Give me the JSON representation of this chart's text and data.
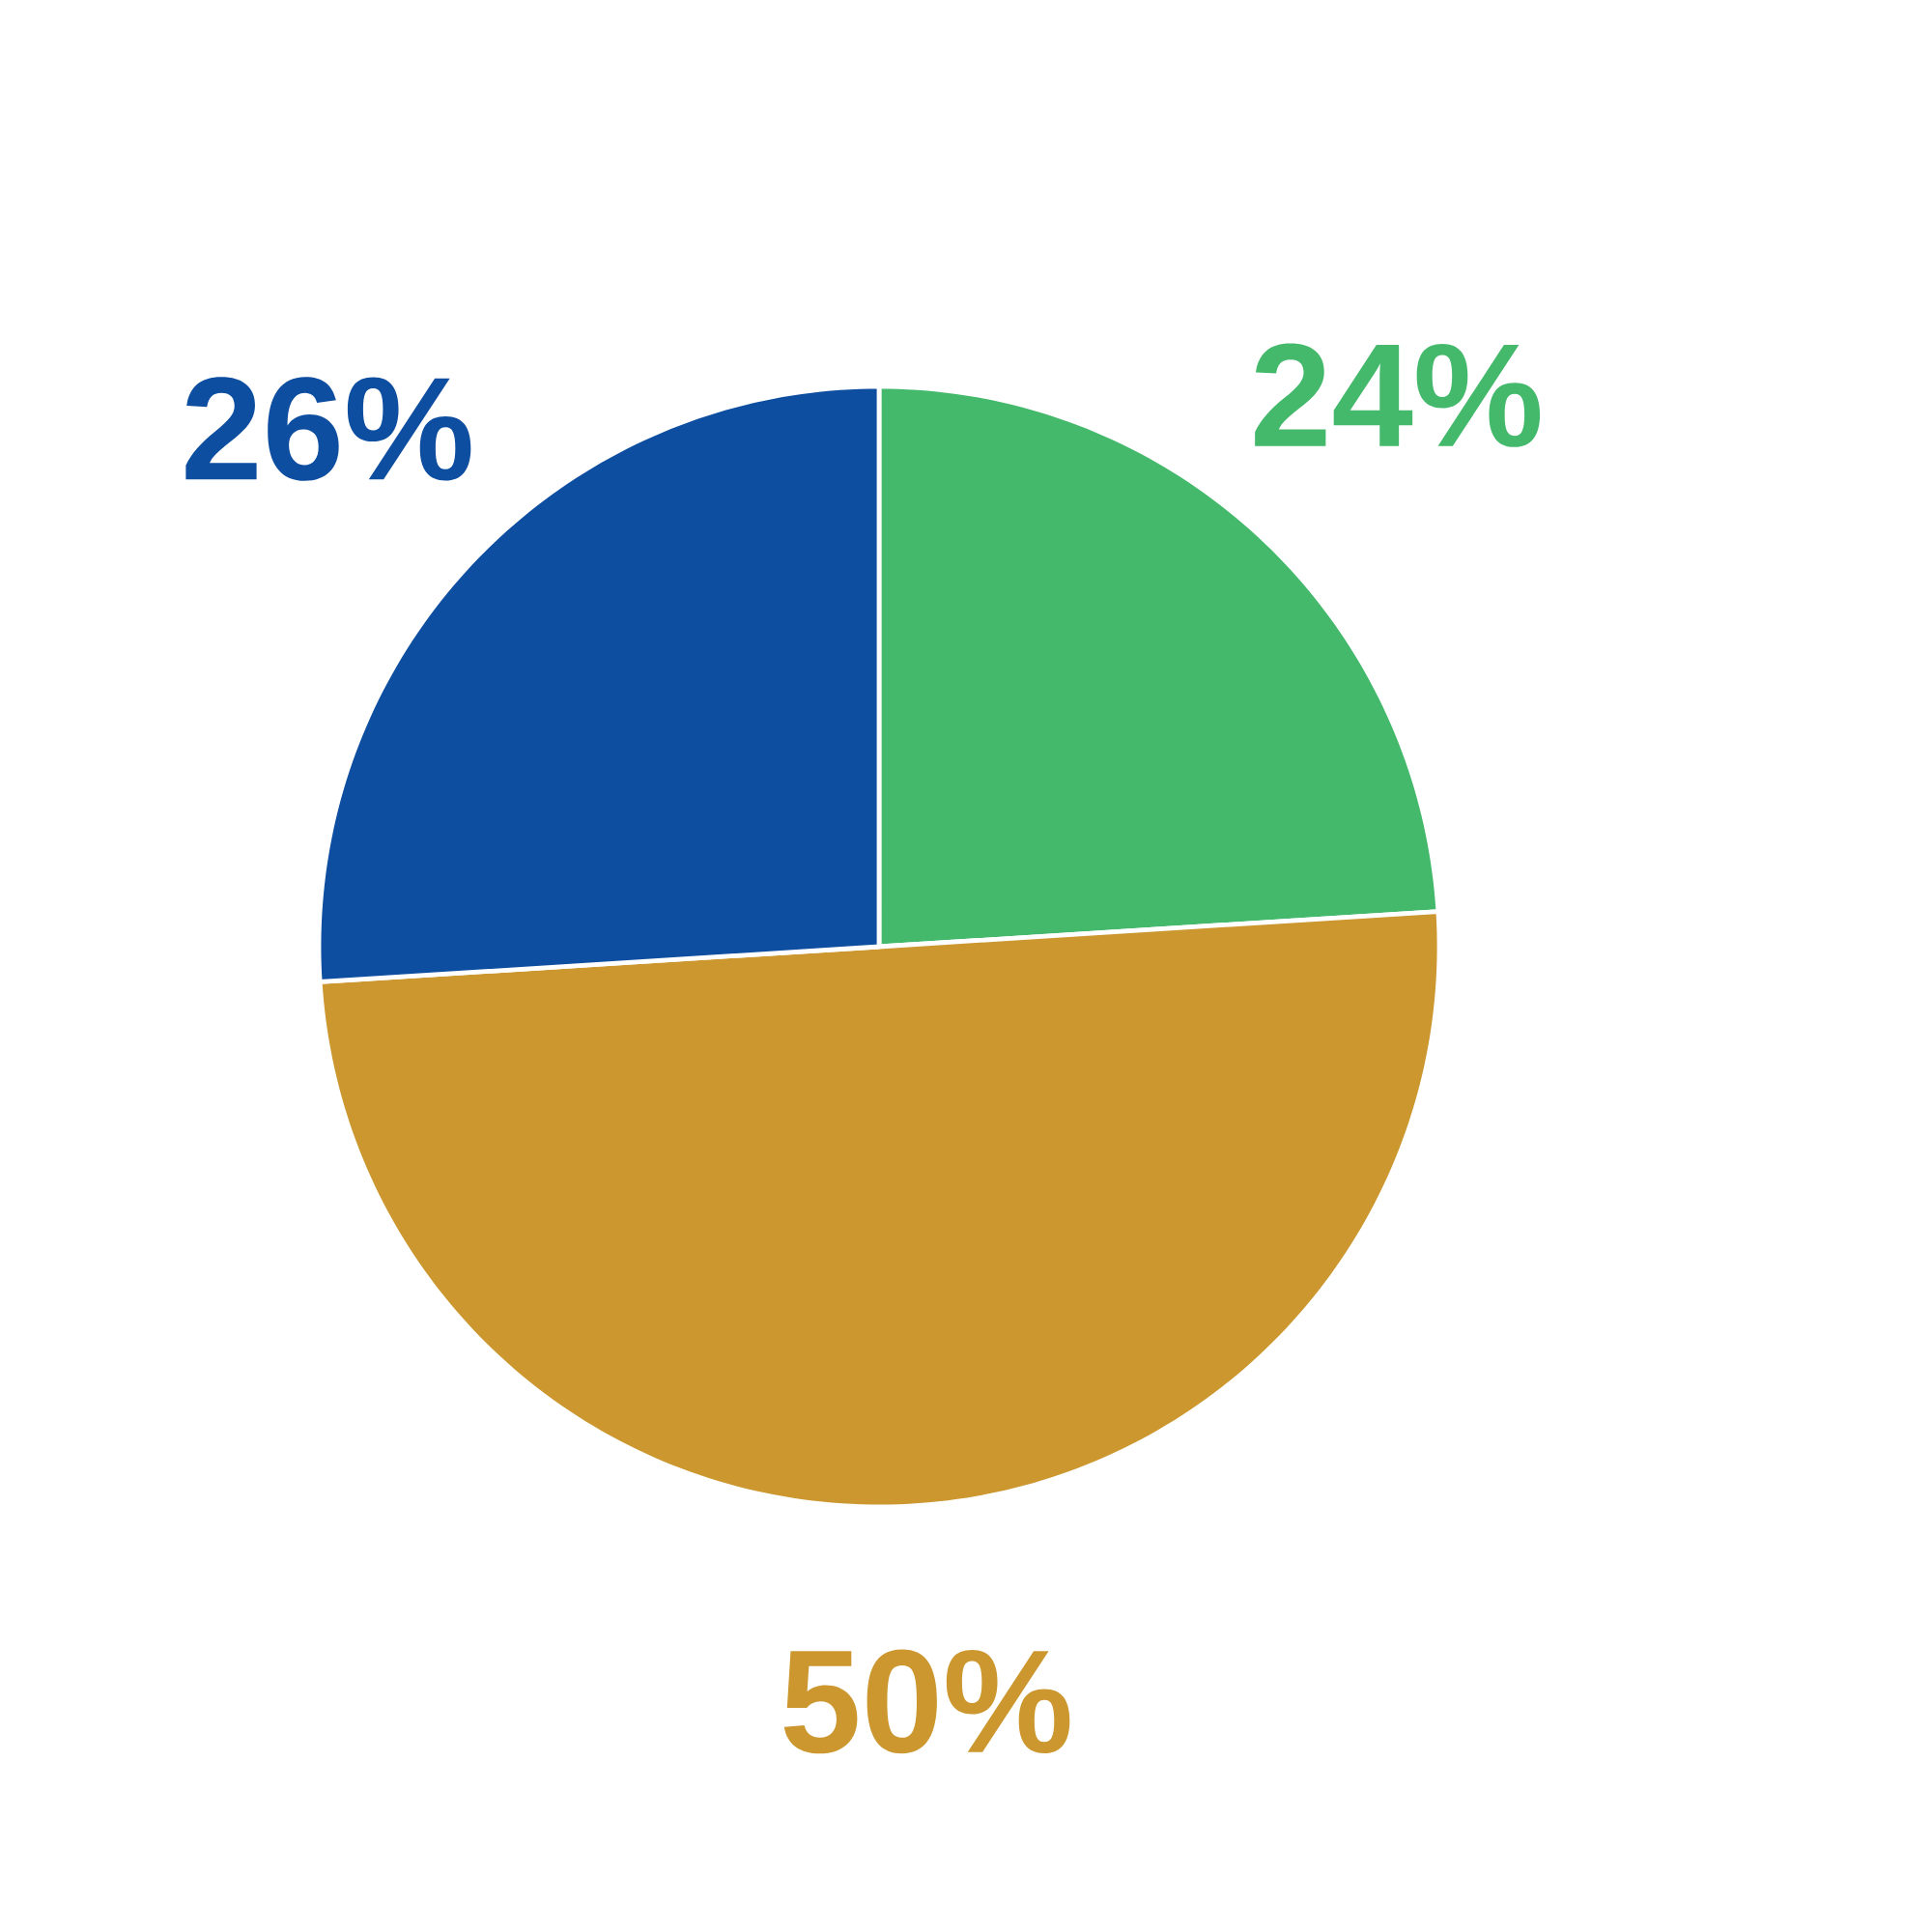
{
  "chart_data": {
    "type": "pie",
    "categories": [
      null,
      null,
      null
    ],
    "values": [
      24,
      50,
      26
    ],
    "colors": [
      "#44b96b",
      "#cb972e",
      "#0d4ea0"
    ],
    "value_labels": [
      "24%",
      "50%",
      "26%"
    ]
  }
}
